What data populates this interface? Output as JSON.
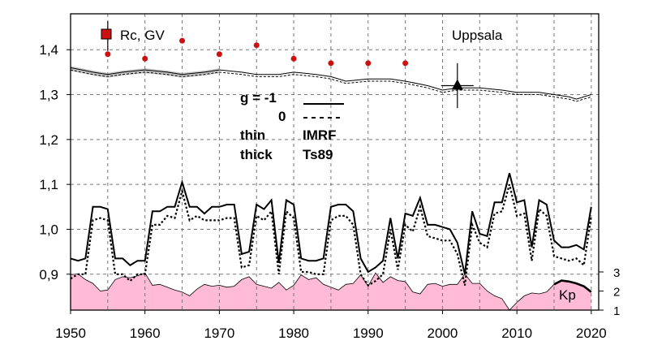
{
  "chart_data": {
    "type": "line",
    "station": "Uppsala",
    "xlim": [
      1950,
      2021
    ],
    "ylim": [
      0.82,
      1.48
    ],
    "x_ticks": [
      "1950",
      "1960",
      "1970",
      "1980",
      "1990",
      "2000",
      "2010",
      "2020"
    ],
    "y_ticks": [
      "0,9",
      "1,0",
      "1,1",
      "1,2",
      "1,3",
      "1,4"
    ],
    "kp_ticks": [
      "1",
      "2",
      "3"
    ],
    "legend": {
      "rc_label": "Rc, GV",
      "g_label": "g  = -1",
      "g_zero": "0",
      "thin": "thin",
      "thick": "thick",
      "imrf": "IMRF",
      "ts89": "Ts89",
      "kp_label": "Kp"
    },
    "colors": {
      "rc_marker": "#cc1111",
      "kp_fill": "#ffbad6",
      "grid": "#777777",
      "band": "#999999"
    },
    "rc_points": [
      {
        "x": 1955,
        "y": 1.39
      },
      {
        "x": 1960,
        "y": 1.38
      },
      {
        "x": 1965,
        "y": 1.42
      },
      {
        "x": 1970,
        "y": 1.39
      },
      {
        "x": 1975,
        "y": 1.41
      },
      {
        "x": 1980,
        "y": 1.38
      },
      {
        "x": 1985,
        "y": 1.37
      },
      {
        "x": 1990,
        "y": 1.37
      },
      {
        "x": 1995,
        "y": 1.37
      }
    ],
    "uppsala_point": {
      "x": 2002,
      "y": 1.32,
      "err": 0.05
    },
    "series_upper_thin_solid": [
      [
        1950,
        1.36
      ],
      [
        1953,
        1.35
      ],
      [
        1955,
        1.345
      ],
      [
        1957,
        1.35
      ],
      [
        1960,
        1.355
      ],
      [
        1963,
        1.35
      ],
      [
        1965,
        1.345
      ],
      [
        1968,
        1.35
      ],
      [
        1970,
        1.355
      ],
      [
        1973,
        1.35
      ],
      [
        1975,
        1.345
      ],
      [
        1978,
        1.345
      ],
      [
        1980,
        1.35
      ],
      [
        1983,
        1.345
      ],
      [
        1985,
        1.34
      ],
      [
        1987,
        1.33
      ],
      [
        1990,
        1.335
      ],
      [
        1993,
        1.335
      ],
      [
        1995,
        1.33
      ],
      [
        1998,
        1.32
      ],
      [
        2000,
        1.31
      ],
      [
        2002,
        1.315
      ],
      [
        2005,
        1.315
      ],
      [
        2008,
        1.31
      ],
      [
        2010,
        1.305
      ],
      [
        2013,
        1.305
      ],
      [
        2015,
        1.3
      ],
      [
        2017,
        1.295
      ],
      [
        2018,
        1.29
      ],
      [
        2020,
        1.3
      ]
    ],
    "series_upper_thin_dashed": [
      [
        1950,
        1.355
      ],
      [
        1953,
        1.345
      ],
      [
        1955,
        1.34
      ],
      [
        1957,
        1.345
      ],
      [
        1960,
        1.35
      ],
      [
        1963,
        1.345
      ],
      [
        1965,
        1.34
      ],
      [
        1968,
        1.345
      ],
      [
        1970,
        1.35
      ],
      [
        1973,
        1.345
      ],
      [
        1975,
        1.34
      ],
      [
        1978,
        1.34
      ],
      [
        1980,
        1.345
      ],
      [
        1983,
        1.34
      ],
      [
        1985,
        1.335
      ],
      [
        1987,
        1.325
      ],
      [
        1990,
        1.33
      ],
      [
        1993,
        1.33
      ],
      [
        1995,
        1.325
      ],
      [
        1998,
        1.315
      ],
      [
        2000,
        1.305
      ],
      [
        2002,
        1.31
      ],
      [
        2005,
        1.31
      ],
      [
        2008,
        1.305
      ],
      [
        2010,
        1.3
      ],
      [
        2013,
        1.3
      ],
      [
        2015,
        1.295
      ],
      [
        2017,
        1.29
      ],
      [
        2018,
        1.285
      ],
      [
        2020,
        1.295
      ]
    ],
    "series_lower_solid": [
      [
        1950,
        0.935
      ],
      [
        1951,
        0.93
      ],
      [
        1952,
        0.935
      ],
      [
        1953,
        1.05
      ],
      [
        1954,
        1.05
      ],
      [
        1955,
        1.045
      ],
      [
        1956,
        0.935
      ],
      [
        1957,
        0.935
      ],
      [
        1958,
        0.92
      ],
      [
        1959,
        0.93
      ],
      [
        1960,
        0.93
      ],
      [
        1961,
        1.04
      ],
      [
        1962,
        1.04
      ],
      [
        1963,
        1.05
      ],
      [
        1964,
        1.05
      ],
      [
        1965,
        1.105
      ],
      [
        1966,
        1.05
      ],
      [
        1967,
        1.05
      ],
      [
        1968,
        1.035
      ],
      [
        1969,
        1.05
      ],
      [
        1970,
        1.05
      ],
      [
        1971,
        1.055
      ],
      [
        1972,
        1.055
      ],
      [
        1973,
        0.945
      ],
      [
        1974,
        0.95
      ],
      [
        1975,
        1.055
      ],
      [
        1976,
        1.045
      ],
      [
        1977,
        1.065
      ],
      [
        1978,
        0.925
      ],
      [
        1979,
        1.065
      ],
      [
        1980,
        1.055
      ],
      [
        1981,
        0.935
      ],
      [
        1982,
        0.93
      ],
      [
        1983,
        0.93
      ],
      [
        1984,
        0.935
      ],
      [
        1985,
        1.05
      ],
      [
        1986,
        1.055
      ],
      [
        1987,
        1.055
      ],
      [
        1988,
        1.04
      ],
      [
        1989,
        0.935
      ],
      [
        1990,
        0.905
      ],
      [
        1991,
        0.915
      ],
      [
        1992,
        0.93
      ],
      [
        1993,
        1.025
      ],
      [
        1994,
        0.935
      ],
      [
        1995,
        1.035
      ],
      [
        1996,
        1.03
      ],
      [
        1997,
        1.07
      ],
      [
        1998,
        1.01
      ],
      [
        1999,
        1.01
      ],
      [
        2000,
        1.005
      ],
      [
        2001,
        1.0
      ],
      [
        2002,
        0.97
      ],
      [
        2003,
        0.9
      ],
      [
        2004,
        1.04
      ],
      [
        2005,
        0.99
      ],
      [
        2006,
        0.985
      ],
      [
        2007,
        1.06
      ],
      [
        2008,
        1.06
      ],
      [
        2009,
        1.125
      ],
      [
        2010,
        1.06
      ],
      [
        2011,
        1.065
      ],
      [
        2012,
        0.96
      ],
      [
        2013,
        1.065
      ],
      [
        2014,
        1.055
      ],
      [
        2015,
        0.975
      ],
      [
        2016,
        0.96
      ],
      [
        2017,
        0.96
      ],
      [
        2018,
        0.965
      ],
      [
        2019,
        0.955
      ],
      [
        2020,
        1.05
      ]
    ],
    "series_lower_dotted": [
      [
        1950,
        0.89
      ],
      [
        1951,
        0.9
      ],
      [
        1952,
        0.9
      ],
      [
        1953,
        1.02
      ],
      [
        1954,
        1.025
      ],
      [
        1955,
        1.02
      ],
      [
        1956,
        0.9
      ],
      [
        1957,
        0.9
      ],
      [
        1958,
        0.885
      ],
      [
        1959,
        0.9
      ],
      [
        1960,
        0.9
      ],
      [
        1961,
        1.01
      ],
      [
        1962,
        1.01
      ],
      [
        1963,
        1.03
      ],
      [
        1964,
        1.025
      ],
      [
        1965,
        1.085
      ],
      [
        1966,
        1.02
      ],
      [
        1967,
        1.03
      ],
      [
        1968,
        1.02
      ],
      [
        1969,
        1.02
      ],
      [
        1970,
        1.02
      ],
      [
        1971,
        1.025
      ],
      [
        1972,
        1.025
      ],
      [
        1973,
        0.915
      ],
      [
        1974,
        0.92
      ],
      [
        1975,
        1.03
      ],
      [
        1976,
        1.02
      ],
      [
        1977,
        1.04
      ],
      [
        1978,
        0.9
      ],
      [
        1979,
        1.04
      ],
      [
        1980,
        1.025
      ],
      [
        1981,
        0.905
      ],
      [
        1982,
        0.905
      ],
      [
        1983,
        0.9
      ],
      [
        1984,
        0.9
      ],
      [
        1985,
        1.02
      ],
      [
        1986,
        1.03
      ],
      [
        1987,
        1.03
      ],
      [
        1988,
        1.01
      ],
      [
        1989,
        0.9
      ],
      [
        1990,
        0.875
      ],
      [
        1991,
        0.885
      ],
      [
        1992,
        0.9
      ],
      [
        1993,
        1.0
      ],
      [
        1994,
        0.91
      ],
      [
        1995,
        1.01
      ],
      [
        1996,
        0.995
      ],
      [
        1997,
        1.05
      ],
      [
        1998,
        0.985
      ],
      [
        1999,
        0.98
      ],
      [
        2000,
        0.975
      ],
      [
        2001,
        0.975
      ],
      [
        2002,
        0.945
      ],
      [
        2003,
        0.875
      ],
      [
        2004,
        1.01
      ],
      [
        2005,
        0.97
      ],
      [
        2006,
        0.96
      ],
      [
        2007,
        1.035
      ],
      [
        2008,
        1.04
      ],
      [
        2009,
        1.1
      ],
      [
        2010,
        1.03
      ],
      [
        2011,
        1.035
      ],
      [
        2012,
        0.93
      ],
      [
        2013,
        1.045
      ],
      [
        2014,
        1.03
      ],
      [
        2015,
        0.94
      ],
      [
        2016,
        0.935
      ],
      [
        2017,
        0.93
      ],
      [
        2018,
        0.935
      ],
      [
        2019,
        0.92
      ],
      [
        2020,
        1.03
      ]
    ],
    "kp_series": [
      [
        1950,
        2.85
      ],
      [
        1951,
        2.9
      ],
      [
        1952,
        2.6
      ],
      [
        1953,
        2.4
      ],
      [
        1954,
        2.0
      ],
      [
        1955,
        2.05
      ],
      [
        1956,
        2.6
      ],
      [
        1957,
        2.75
      ],
      [
        1958,
        2.7
      ],
      [
        1959,
        2.8
      ],
      [
        1960,
        2.95
      ],
      [
        1961,
        2.3
      ],
      [
        1962,
        2.35
      ],
      [
        1963,
        2.2
      ],
      [
        1964,
        2.05
      ],
      [
        1965,
        1.95
      ],
      [
        1966,
        1.75
      ],
      [
        1967,
        2.1
      ],
      [
        1968,
        2.35
      ],
      [
        1969,
        2.25
      ],
      [
        1970,
        2.3
      ],
      [
        1971,
        2.2
      ],
      [
        1972,
        2.25
      ],
      [
        1973,
        2.6
      ],
      [
        1974,
        2.75
      ],
      [
        1975,
        2.35
      ],
      [
        1976,
        2.25
      ],
      [
        1977,
        2.15
      ],
      [
        1978,
        2.45
      ],
      [
        1979,
        2.05
      ],
      [
        1980,
        2.3
      ],
      [
        1981,
        2.85
      ],
      [
        1982,
        2.6
      ],
      [
        1983,
        2.7
      ],
      [
        1984,
        2.35
      ],
      [
        1985,
        2.2
      ],
      [
        1986,
        2.05
      ],
      [
        1987,
        2.35
      ],
      [
        1988,
        2.4
      ],
      [
        1989,
        2.85
      ],
      [
        1990,
        2.25
      ],
      [
        1991,
        2.95
      ],
      [
        1992,
        2.45
      ],
      [
        1993,
        2.75
      ],
      [
        1994,
        2.55
      ],
      [
        1995,
        2.5
      ],
      [
        1996,
        1.95
      ],
      [
        1997,
        1.85
      ],
      [
        1998,
        2.35
      ],
      [
        1999,
        2.4
      ],
      [
        2000,
        2.25
      ],
      [
        2001,
        2.35
      ],
      [
        2002,
        2.35
      ],
      [
        2003,
        2.9
      ],
      [
        2004,
        2.4
      ],
      [
        2005,
        2.4
      ],
      [
        2006,
        2.0
      ],
      [
        2007,
        1.75
      ],
      [
        2008,
        1.6
      ],
      [
        2009,
        1.0
      ],
      [
        2010,
        1.4
      ],
      [
        2011,
        1.75
      ],
      [
        2012,
        1.9
      ],
      [
        2013,
        1.85
      ],
      [
        2014,
        1.95
      ],
      [
        2015,
        2.35
      ],
      [
        2016,
        2.55
      ],
      [
        2017,
        2.5
      ],
      [
        2018,
        2.4
      ],
      [
        2019,
        2.25
      ],
      [
        2020,
        1.95
      ]
    ]
  }
}
